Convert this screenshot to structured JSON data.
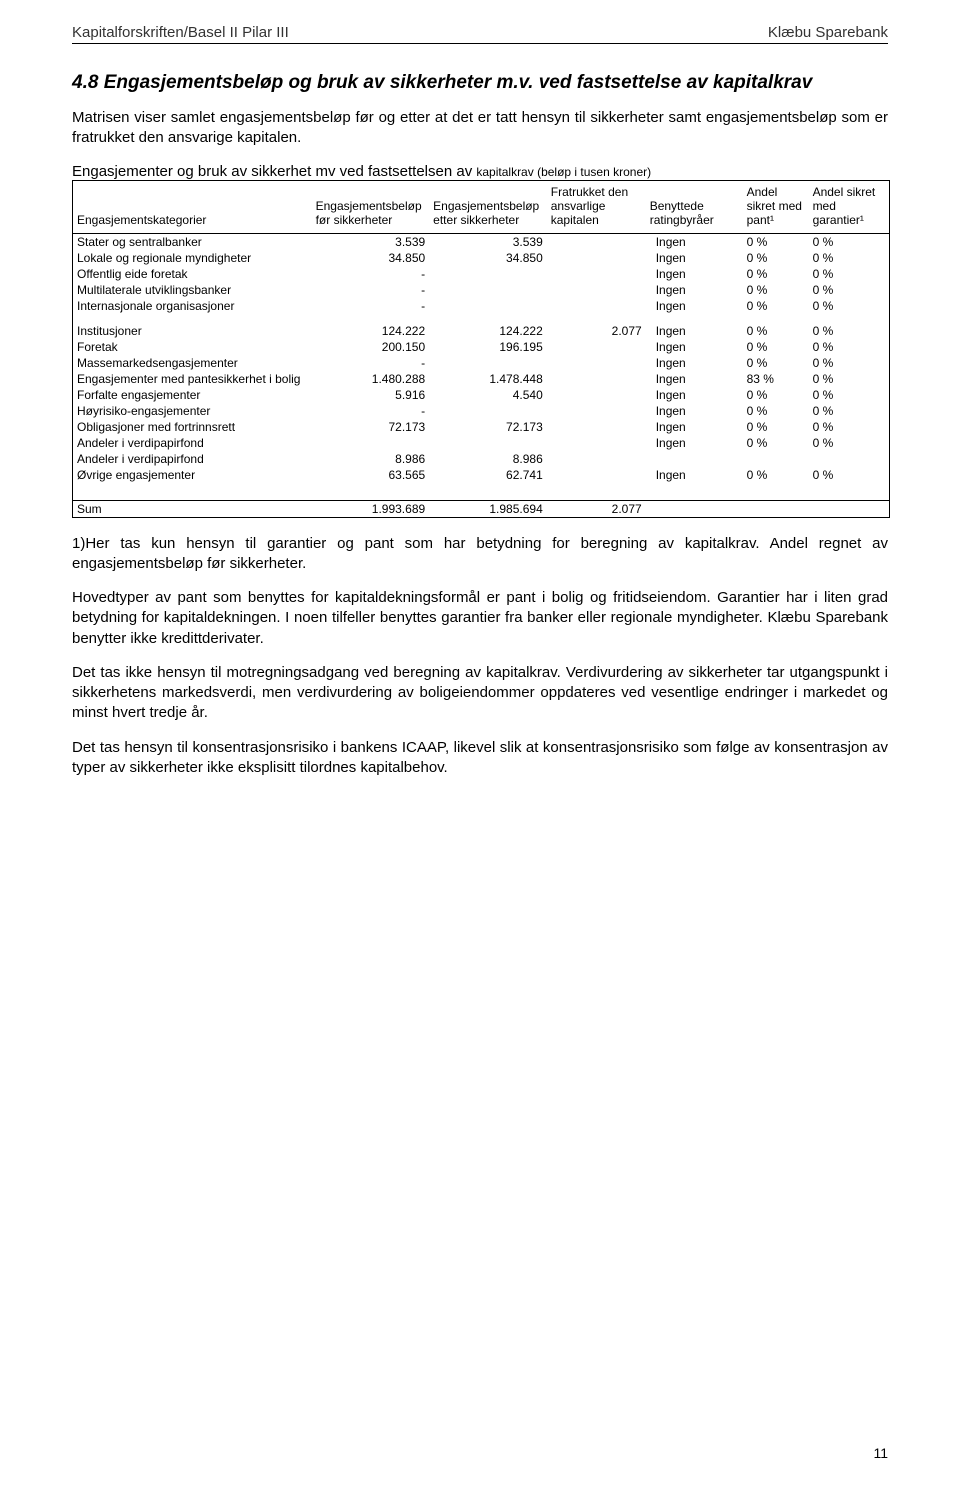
{
  "header": {
    "left": "Kapitalforskriften/Basel II Pilar III",
    "right": "Klæbu Sparebank"
  },
  "section": {
    "title": "4.8  Engasjementsbeløp og bruk av sikkerheter m.v. ved fastsettelse av kapitalkrav",
    "intro": "Matrisen viser samlet engasjementsbeløp før og etter at det er tatt hensyn til sikkerheter samt engasjementsbeløp som er fratrukket den ansvarige kapitalen."
  },
  "table": {
    "caption_main": "Engasjementer og bruk av sikkerhet mv ved fastsettelsen av ",
    "caption_small": "kapitalkrav (beløp i tusen kroner)",
    "columns": {
      "c0": "Engasjementskategorier",
      "c1": "Engasjementsbeløp før sikkerheter",
      "c2": "Engasjementsbeløp etter sikkerheter",
      "c3": "Fratrukket den ansvarlige kapitalen",
      "c4": "Benyttede ratingbyråer",
      "c5": "Andel sikret med pant¹",
      "c6": "Andel sikret med garantier¹"
    },
    "rows": [
      {
        "cat": "Stater og sentralbanker",
        "c1": "3.539",
        "c2": "3.539",
        "c3": "",
        "c4": "Ingen",
        "c5": "0 %",
        "c6": "0 %"
      },
      {
        "cat": "Lokale og regionale myndigheter",
        "c1": "34.850",
        "c2": "34.850",
        "c3": "",
        "c4": "Ingen",
        "c5": "0 %",
        "c6": "0 %"
      },
      {
        "cat": "Offentlig eide foretak",
        "c1": "-",
        "c2": "",
        "c3": "",
        "c4": "Ingen",
        "c5": "0 %",
        "c6": "0 %"
      },
      {
        "cat": "Multilaterale utviklingsbanker",
        "c1": "-",
        "c2": "",
        "c3": "",
        "c4": "Ingen",
        "c5": "0 %",
        "c6": "0 %"
      },
      {
        "cat": "Internasjonale organisasjoner",
        "c1": "-",
        "c2": "",
        "c3": "",
        "c4": "Ingen",
        "c5": "0 %",
        "c6": "0 %"
      },
      {
        "cat": "Institusjoner",
        "c1": "124.222",
        "c2": "124.222",
        "c3": "2.077",
        "c4": "Ingen",
        "c5": "0 %",
        "c6": "0 %",
        "gap": true
      },
      {
        "cat": "Foretak",
        "c1": "200.150",
        "c2": "196.195",
        "c3": "",
        "c4": "Ingen",
        "c5": "0 %",
        "c6": "0 %"
      },
      {
        "cat": "Massemarkedsengasjementer",
        "c1": "-",
        "c2": "",
        "c3": "",
        "c4": "Ingen",
        "c5": "0 %",
        "c6": "0 %"
      },
      {
        "cat": "Engasjementer med pantesikkerhet i bolig",
        "c1": "1.480.288",
        "c2": "1.478.448",
        "c3": "",
        "c4": "Ingen",
        "c5": "83 %",
        "c6": "0 %"
      },
      {
        "cat": "Forfalte engasjementer",
        "c1": "5.916",
        "c2": "4.540",
        "c3": "",
        "c4": "Ingen",
        "c5": "0 %",
        "c6": "0 %"
      },
      {
        "cat": "Høyrisiko-engasjementer",
        "c1": "-",
        "c2": "",
        "c3": "",
        "c4": "Ingen",
        "c5": "0 %",
        "c6": "0 %"
      },
      {
        "cat": "Obligasjoner med fortrinnsrett",
        "c1": "72.173",
        "c2": "72.173",
        "c3": "",
        "c4": "Ingen",
        "c5": "0 %",
        "c6": "0 %"
      },
      {
        "cat": "Andeler i verdipapirfond",
        "c1": "",
        "c2": "",
        "c3": "",
        "c4": "Ingen",
        "c5": "0 %",
        "c6": "0 %"
      },
      {
        "cat": "Andeler i verdipapirfond",
        "c1": "8.986",
        "c2": "8.986",
        "c3": "",
        "c4": "",
        "c5": "",
        "c6": ""
      },
      {
        "cat": "Øvrige engasjementer",
        "c1": "63.565",
        "c2": "62.741",
        "c3": "",
        "c4": "Ingen",
        "c5": "0 %",
        "c6": "0 %"
      }
    ],
    "sum": {
      "cat": "Sum",
      "c1": "1.993.689",
      "c2": "1.985.694",
      "c3": "2.077"
    }
  },
  "paragraphs": {
    "p1": "1)Her tas kun hensyn til garantier og pant som har betydning for beregning av kapitalkrav. Andel regnet av engasjementsbeløp før sikkerheter.",
    "p2": "Hovedtyper av pant som benyttes for kapitaldekningsformål er pant i bolig og fritidseiendom. Garantier har i liten grad betydning for kapitaldekningen. I noen tilfeller benyttes garantier fra banker eller regionale myndigheter. Klæbu Sparebank benytter ikke kredittderivater.",
    "p3": "Det tas ikke hensyn til motregningsadgang ved beregning av kapitalkrav. Verdivurdering av sikkerheter tar utgangspunkt i sikkerhetens markedsverdi, men verdivurdering av boligeiendommer oppdateres ved vesentlige endringer i markedet og minst hvert tredje år.",
    "p4": "Det tas hensyn til konsentrasjonsrisiko i bankens ICAAP, likevel slik at konsentrasjonsrisiko som følge av konsentrasjon av typer av sikkerheter ikke eksplisitt tilordnes kapitalbehov."
  },
  "pagenum": "11"
}
